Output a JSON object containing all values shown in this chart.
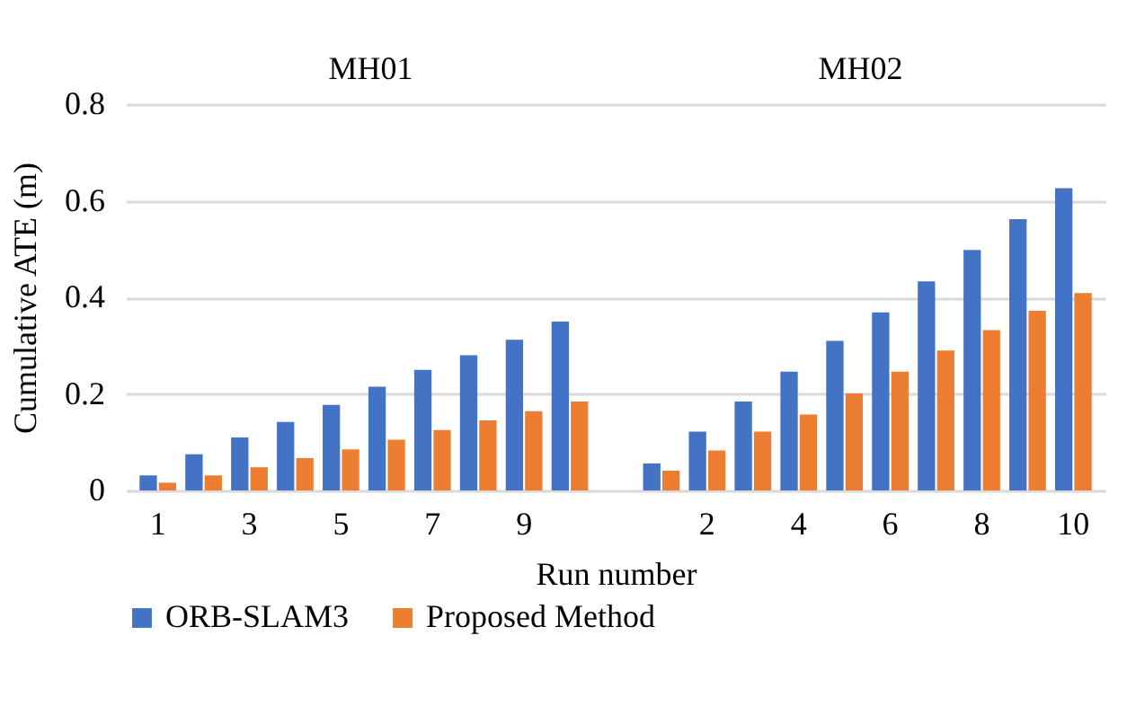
{
  "chart_data": {
    "type": "bar",
    "xlabel": "Run number",
    "ylabel": "Cumulative  ATE (m)",
    "annotations": [
      "MH01",
      "MH02"
    ],
    "categories": [
      "1",
      null,
      "3",
      null,
      "5",
      null,
      "7",
      null,
      "9",
      null,
      null,
      null,
      "2",
      null,
      "4",
      null,
      "6",
      null,
      "8",
      null,
      "10"
    ],
    "series": [
      {
        "name": "ORB-SLAM3",
        "color": "#4472c4",
        "values": [
          0.031,
          0.075,
          0.11,
          0.142,
          0.177,
          0.215,
          0.25,
          0.28,
          0.312,
          0.35,
          null,
          0.056,
          0.122,
          0.184,
          0.246,
          0.31,
          0.369,
          0.433,
          0.498,
          0.562,
          0.626
        ]
      },
      {
        "name": "Proposed Method",
        "color": "#ed7d31",
        "values": [
          0.016,
          0.031,
          0.048,
          0.067,
          0.085,
          0.105,
          0.125,
          0.145,
          0.164,
          0.184,
          null,
          0.041,
          0.083,
          0.122,
          0.157,
          0.201,
          0.246,
          0.29,
          0.332,
          0.372,
          0.409
        ]
      }
    ],
    "ylim": [
      0,
      0.8
    ],
    "yticks": [
      0,
      0.2,
      0.4,
      0.6,
      0.8
    ],
    "grid": "y",
    "legend": "bottom"
  }
}
